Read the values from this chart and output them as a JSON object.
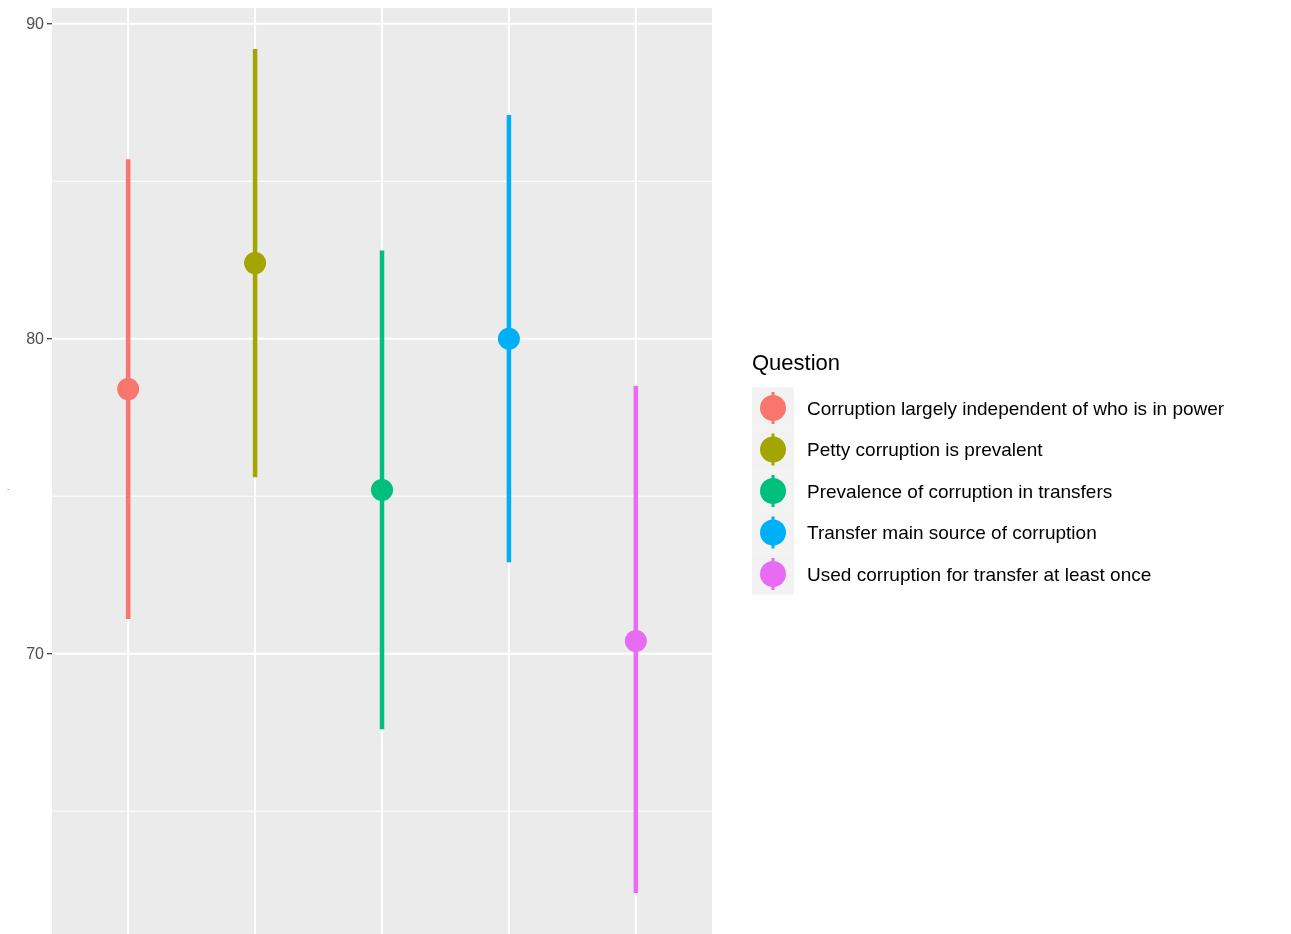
{
  "chart_data": {
    "type": "scatter",
    "ylabel": ".",
    "legend_title": "Question",
    "categories": [
      null,
      null,
      null,
      null,
      null
    ],
    "ylim": [
      61.1,
      90.5
    ],
    "yticks": [
      70,
      80,
      90
    ],
    "grid": true,
    "legend": "right",
    "marker": "circle",
    "series": [
      {
        "name": "Corruption largely independent of who is in power",
        "color": "#f8766d",
        "values": [
          78.4,
          null,
          null,
          null,
          null
        ],
        "errors": [
          [
            71.1,
            85.7
          ],
          null,
          null,
          null,
          null
        ]
      },
      {
        "name": "Petty corruption is prevalent",
        "color": "#a3a500",
        "values": [
          null,
          82.4,
          null,
          null,
          null
        ],
        "errors": [
          null,
          [
            75.6,
            89.2
          ],
          null,
          null,
          null
        ]
      },
      {
        "name": "Prevalence of corruption in transfers",
        "color": "#00bf7d",
        "values": [
          null,
          null,
          75.2,
          null,
          null
        ],
        "errors": [
          null,
          null,
          [
            67.6,
            82.8
          ],
          null,
          null
        ]
      },
      {
        "name": "Transfer main source of corruption",
        "color": "#00b0f6",
        "values": [
          null,
          null,
          null,
          80.0,
          null
        ],
        "errors": [
          null,
          null,
          null,
          [
            72.9,
            87.1
          ],
          null
        ]
      },
      {
        "name": "Used corruption for transfer at least once",
        "color": "#e76bf3",
        "values": [
          null,
          null,
          null,
          null,
          70.4
        ],
        "errors": [
          null,
          null,
          null,
          null,
          [
            62.4,
            78.5
          ]
        ]
      }
    ]
  }
}
